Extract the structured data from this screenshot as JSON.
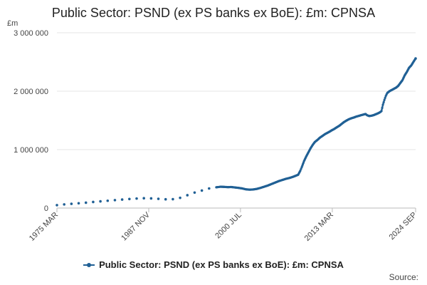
{
  "chart_data": {
    "type": "line",
    "title": "Public Sector: PSND (ex PS banks ex BoE): £m: CPNSA",
    "unit_label": "£m",
    "xlabel": "",
    "ylabel": "",
    "ylim": [
      0,
      3000000
    ],
    "y_ticks": [
      0,
      1000000,
      2000000,
      3000000
    ],
    "y_tick_labels": [
      "0",
      "1 000 000",
      "2 000 000",
      "3 000 000"
    ],
    "x_ticks": [
      1975.21,
      1987.88,
      2000.54,
      2013.21,
      2024.71
    ],
    "x_tick_labels": [
      "1975 MAR",
      "1987 NOV",
      "2000 JUL",
      "2013 MAR",
      "2024 SEP"
    ],
    "xlim": [
      1975.21,
      2024.71
    ],
    "grid": true,
    "legend_placement": "bottom",
    "series_color": "#206095",
    "series": [
      {
        "name": "Public Sector: PSND (ex PS banks ex BoE): £m: CPNSA",
        "annual_points": [
          [
            1975.21,
            50000
          ],
          [
            1976.21,
            62000
          ],
          [
            1977.21,
            72000
          ],
          [
            1978.21,
            82000
          ],
          [
            1979.21,
            92000
          ],
          [
            1980.21,
            104000
          ],
          [
            1981.21,
            115000
          ],
          [
            1982.21,
            125000
          ],
          [
            1983.21,
            135000
          ],
          [
            1984.21,
            145000
          ],
          [
            1985.21,
            155000
          ],
          [
            1986.21,
            163000
          ],
          [
            1987.21,
            168000
          ],
          [
            1988.21,
            165000
          ],
          [
            1989.21,
            158000
          ],
          [
            1990.21,
            150000
          ],
          [
            1991.21,
            152000
          ],
          [
            1992.21,
            175000
          ],
          [
            1993.21,
            220000
          ],
          [
            1994.21,
            265000
          ],
          [
            1995.21,
            300000
          ],
          [
            1996.21,
            335000
          ]
        ],
        "monthly_points": [
          [
            1997.2,
            355000
          ],
          [
            1997.8,
            365000
          ],
          [
            1998.3,
            362000
          ],
          [
            1998.8,
            358000
          ],
          [
            1999.3,
            360000
          ],
          [
            1999.8,
            352000
          ],
          [
            2000.3,
            345000
          ],
          [
            2000.8,
            335000
          ],
          [
            2001.3,
            320000
          ],
          [
            2001.8,
            315000
          ],
          [
            2002.3,
            318000
          ],
          [
            2002.8,
            328000
          ],
          [
            2003.3,
            345000
          ],
          [
            2003.8,
            365000
          ],
          [
            2004.3,
            385000
          ],
          [
            2004.8,
            410000
          ],
          [
            2005.3,
            435000
          ],
          [
            2005.8,
            460000
          ],
          [
            2006.3,
            480000
          ],
          [
            2006.8,
            500000
          ],
          [
            2007.3,
            515000
          ],
          [
            2007.8,
            535000
          ],
          [
            2008.2,
            555000
          ],
          [
            2008.5,
            570000
          ],
          [
            2008.8,
            640000
          ],
          [
            2009.0,
            700000
          ],
          [
            2009.3,
            800000
          ],
          [
            2009.6,
            880000
          ],
          [
            2009.9,
            950000
          ],
          [
            2010.2,
            1020000
          ],
          [
            2010.5,
            1080000
          ],
          [
            2010.8,
            1130000
          ],
          [
            2011.2,
            1170000
          ],
          [
            2011.5,
            1205000
          ],
          [
            2011.8,
            1230000
          ],
          [
            2012.2,
            1265000
          ],
          [
            2012.5,
            1285000
          ],
          [
            2012.8,
            1305000
          ],
          [
            2013.2,
            1335000
          ],
          [
            2013.5,
            1355000
          ],
          [
            2013.8,
            1380000
          ],
          [
            2014.2,
            1410000
          ],
          [
            2014.5,
            1440000
          ],
          [
            2014.8,
            1470000
          ],
          [
            2015.2,
            1500000
          ],
          [
            2015.5,
            1520000
          ],
          [
            2015.8,
            1535000
          ],
          [
            2016.2,
            1550000
          ],
          [
            2016.5,
            1565000
          ],
          [
            2016.8,
            1575000
          ],
          [
            2017.2,
            1590000
          ],
          [
            2017.5,
            1600000
          ],
          [
            2017.8,
            1610000
          ],
          [
            2018.0,
            1590000
          ],
          [
            2018.3,
            1575000
          ],
          [
            2018.6,
            1580000
          ],
          [
            2018.9,
            1590000
          ],
          [
            2019.2,
            1605000
          ],
          [
            2019.5,
            1620000
          ],
          [
            2019.8,
            1640000
          ],
          [
            2020.0,
            1660000
          ],
          [
            2020.2,
            1770000
          ],
          [
            2020.4,
            1850000
          ],
          [
            2020.6,
            1920000
          ],
          [
            2020.8,
            1970000
          ],
          [
            2021.1,
            2000000
          ],
          [
            2021.4,
            2020000
          ],
          [
            2021.7,
            2040000
          ],
          [
            2022.0,
            2060000
          ],
          [
            2022.3,
            2090000
          ],
          [
            2022.6,
            2140000
          ],
          [
            2022.9,
            2190000
          ],
          [
            2023.2,
            2270000
          ],
          [
            2023.5,
            2330000
          ],
          [
            2023.8,
            2400000
          ],
          [
            2024.1,
            2440000
          ],
          [
            2024.4,
            2500000
          ],
          [
            2024.71,
            2560000
          ]
        ]
      }
    ],
    "legend_label": "Public Sector: PSND (ex PS banks ex BoE): £m: CPNSA",
    "source_label": "Source:"
  }
}
